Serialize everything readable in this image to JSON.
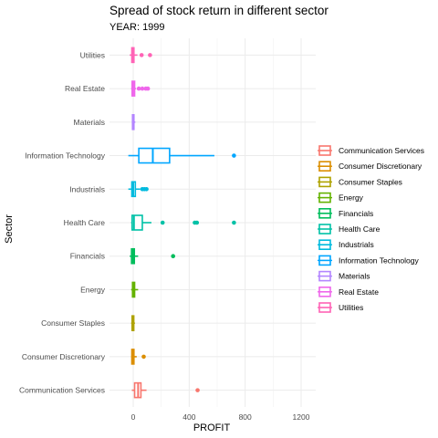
{
  "chart_data": {
    "type": "boxplot",
    "orientation": "horizontal",
    "title": "Spread of stock return in different sector",
    "subtitle": "YEAR: 1999",
    "xlabel": "PROFIT",
    "ylabel": "Sector",
    "xlim": [
      -60,
      1200
    ],
    "xticks": [
      0,
      400,
      800,
      1200
    ],
    "grid": true,
    "legend_position": "right",
    "legend": [
      "Communication Services",
      "Consumer Discretionary",
      "Consumer Staples",
      "Energy",
      "Financials",
      "Health Care",
      "Industrials",
      "Information Technology",
      "Materials",
      "Real Estate",
      "Utilities"
    ],
    "series": [
      {
        "name": "Communication Services",
        "color": "#F8766D",
        "whisker_low": -10,
        "q1": 10,
        "median": 35,
        "q3": 55,
        "whisker_high": 95,
        "outliers": [
          460
        ]
      },
      {
        "name": "Consumer Discretionary",
        "color": "#DB8E00",
        "whisker_low": -15,
        "q1": -10,
        "median": 0,
        "q3": 5,
        "whisker_high": 25,
        "outliers": [
          75
        ]
      },
      {
        "name": "Consumer Staples",
        "color": "#AEA200",
        "whisker_low": -15,
        "q1": -8,
        "median": -2,
        "q3": 4,
        "whisker_high": 12,
        "outliers": []
      },
      {
        "name": "Energy",
        "color": "#64B200",
        "whisker_low": -15,
        "q1": -5,
        "median": 0,
        "q3": 10,
        "whisker_high": 35,
        "outliers": []
      },
      {
        "name": "Financials",
        "color": "#00BD5C",
        "whisker_low": -25,
        "q1": -12,
        "median": -2,
        "q3": 8,
        "whisker_high": 35,
        "outliers": [
          285
        ]
      },
      {
        "name": "Health Care",
        "color": "#00C1A7",
        "whisker_low": -15,
        "q1": -8,
        "median": 5,
        "q3": 65,
        "whisker_high": 130,
        "outliers": [
          210,
          440,
          455,
          720
        ]
      },
      {
        "name": "Industrials",
        "color": "#00BADE",
        "whisker_low": -35,
        "q1": -10,
        "median": 0,
        "q3": 15,
        "whisker_high": 50,
        "outliers": [
          65,
          80,
          95
        ]
      },
      {
        "name": "Information Technology",
        "color": "#00A6FF",
        "whisker_low": -35,
        "q1": 40,
        "median": 140,
        "q3": 260,
        "whisker_high": 580,
        "outliers": [
          720
        ]
      },
      {
        "name": "Materials",
        "color": "#B385FF",
        "whisker_low": -10,
        "q1": -5,
        "median": 0,
        "q3": 5,
        "whisker_high": 15,
        "outliers": []
      },
      {
        "name": "Real Estate",
        "color": "#EF67EB",
        "whisker_low": -15,
        "q1": -8,
        "median": 0,
        "q3": 10,
        "whisker_high": 20,
        "outliers": [
          40,
          65,
          90,
          105
        ]
      },
      {
        "name": "Utilities",
        "color": "#FF63B6",
        "whisker_low": -25,
        "q1": -10,
        "median": -3,
        "q3": 5,
        "whisker_high": 30,
        "outliers": [
          60,
          120
        ]
      }
    ]
  }
}
